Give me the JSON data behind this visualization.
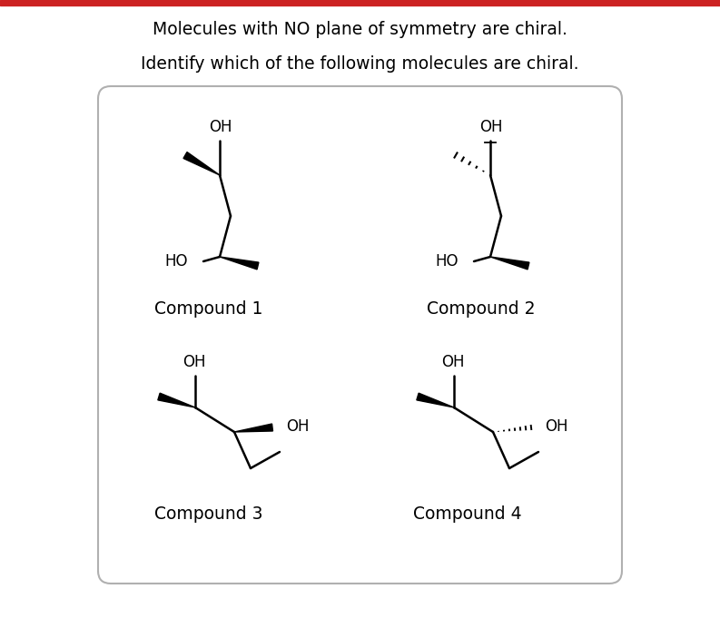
{
  "title_line1": "Molecules with NO plane of symmetry are chiral.",
  "title_line2": "Identify which of the following molecules are chiral.",
  "compound_labels": [
    "Compound 1",
    "Compound 2",
    "Compound 3",
    "Compound 4"
  ],
  "bg_color": "#ffffff",
  "text_color": "#000000",
  "border_color": "#b0b0b0",
  "top_bar_color": "#cc2222",
  "title_fontsize": 13.5,
  "label_fontsize": 13.5,
  "chem_fontsize": 12
}
